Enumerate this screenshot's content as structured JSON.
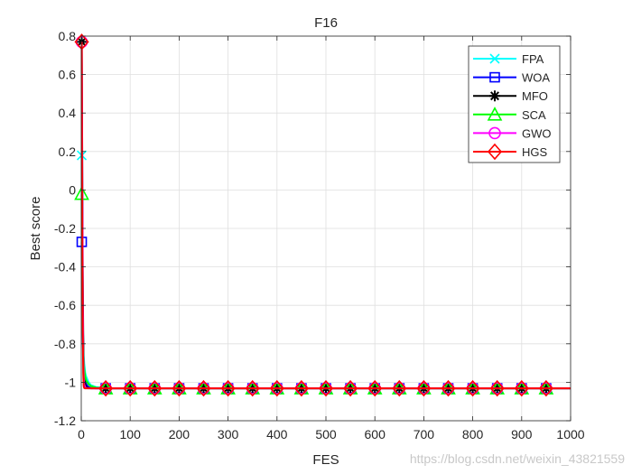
{
  "chart_data": {
    "type": "line",
    "title": "F16",
    "xlabel": "FES",
    "ylabel": "Best score",
    "xlim": [
      0,
      1000
    ],
    "ylim": [
      -1.2,
      0.8
    ],
    "xticks": [
      0,
      100,
      200,
      300,
      400,
      500,
      600,
      700,
      800,
      900,
      1000
    ],
    "xticklabels": [
      "0",
      "100",
      "200",
      "300",
      "400",
      "500",
      "600",
      "700",
      "800",
      "900",
      "1000"
    ],
    "yticks": [
      -1.2,
      -1,
      -0.8,
      -0.6,
      -0.4,
      -0.2,
      0,
      0.2,
      0.4,
      0.6,
      0.8
    ],
    "yticklabels": [
      "-1.2",
      "-1",
      "-0.8",
      "-0.6",
      "-0.4",
      "-0.2",
      "0",
      "0.2",
      "0.4",
      "0.6",
      "0.8"
    ],
    "grid": true,
    "legend_position": "top-right",
    "x": [
      1,
      2,
      3,
      4,
      5,
      6,
      8,
      10,
      15,
      20,
      30,
      50,
      100,
      150,
      200,
      250,
      300,
      350,
      400,
      450,
      500,
      550,
      600,
      650,
      700,
      750,
      800,
      850,
      900,
      950,
      1000
    ],
    "marker_x": [
      1,
      50,
      100,
      150,
      200,
      250,
      300,
      350,
      400,
      450,
      500,
      550,
      600,
      650,
      700,
      750,
      800,
      850,
      900,
      950
    ],
    "series": [
      {
        "name": "FPA",
        "color": "#00FFFF",
        "marker": "x",
        "values": [
          0.18,
          -0.35,
          -0.62,
          -0.78,
          -0.86,
          -0.9,
          -0.95,
          -0.97,
          -1.0,
          -1.015,
          -1.025,
          -1.0316,
          -1.0316,
          -1.0316,
          -1.0316,
          -1.0316,
          -1.0316,
          -1.0316,
          -1.0316,
          -1.0316,
          -1.0316,
          -1.0316,
          -1.0316,
          -1.0316,
          -1.0316,
          -1.0316,
          -1.0316,
          -1.0316,
          -1.0316,
          -1.0316,
          -1.0316
        ]
      },
      {
        "name": "WOA",
        "color": "#0000FF",
        "marker": "square",
        "values": [
          -0.27,
          -0.55,
          -0.75,
          -0.86,
          -0.92,
          -0.96,
          -0.99,
          -1.01,
          -1.025,
          -1.03,
          -1.0316,
          -1.0316,
          -1.0316,
          -1.0316,
          -1.0316,
          -1.0316,
          -1.0316,
          -1.0316,
          -1.0316,
          -1.0316,
          -1.0316,
          -1.0316,
          -1.0316,
          -1.0316,
          -1.0316,
          -1.0316,
          -1.0316,
          -1.0316,
          -1.0316,
          -1.0316,
          -1.0316
        ]
      },
      {
        "name": "MFO",
        "color": "#000000",
        "marker": "star",
        "values": [
          0.77,
          0.2,
          -0.4,
          -0.75,
          -0.9,
          -0.97,
          -1.01,
          -1.025,
          -1.03,
          -1.0316,
          -1.0316,
          -1.0316,
          -1.0316,
          -1.0316,
          -1.0316,
          -1.0316,
          -1.0316,
          -1.0316,
          -1.0316,
          -1.0316,
          -1.0316,
          -1.0316,
          -1.0316,
          -1.0316,
          -1.0316,
          -1.0316,
          -1.0316,
          -1.0316,
          -1.0316,
          -1.0316,
          -1.0316
        ]
      },
      {
        "name": "SCA",
        "color": "#00FF00",
        "marker": "triangle",
        "values": [
          -0.02,
          -0.45,
          -0.7,
          -0.83,
          -0.89,
          -0.93,
          -0.97,
          -0.99,
          -1.01,
          -1.02,
          -1.028,
          -1.0316,
          -1.0316,
          -1.0316,
          -1.0316,
          -1.0316,
          -1.0316,
          -1.0316,
          -1.0316,
          -1.0316,
          -1.0316,
          -1.0316,
          -1.0316,
          -1.0316,
          -1.0316,
          -1.0316,
          -1.0316,
          -1.0316,
          -1.0316,
          -1.0316,
          -1.0316
        ]
      },
      {
        "name": "GWO",
        "color": "#FF00FF",
        "marker": "circle",
        "values": [
          0.77,
          0.1,
          -0.5,
          -0.85,
          -0.97,
          -1.01,
          -1.025,
          -1.03,
          -1.0316,
          -1.0316,
          -1.0316,
          -1.0316,
          -1.0316,
          -1.0316,
          -1.0316,
          -1.0316,
          -1.0316,
          -1.0316,
          -1.0316,
          -1.0316,
          -1.0316,
          -1.0316,
          -1.0316,
          -1.0316,
          -1.0316,
          -1.0316,
          -1.0316,
          -1.0316,
          -1.0316,
          -1.0316,
          -1.0316
        ]
      },
      {
        "name": "HGS",
        "color": "#FF0000",
        "marker": "diamond",
        "values": [
          0.77,
          -0.2,
          -0.7,
          -0.95,
          -1.02,
          -1.03,
          -1.0316,
          -1.0316,
          -1.0316,
          -1.0316,
          -1.0316,
          -1.0316,
          -1.0316,
          -1.0316,
          -1.0316,
          -1.0316,
          -1.0316,
          -1.0316,
          -1.0316,
          -1.0316,
          -1.0316,
          -1.0316,
          -1.0316,
          -1.0316,
          -1.0316,
          -1.0316,
          -1.0316,
          -1.0316,
          -1.0316,
          -1.0316,
          -1.0316
        ]
      }
    ]
  },
  "watermark": "https://blog.csdn.net/weixin_43821559"
}
